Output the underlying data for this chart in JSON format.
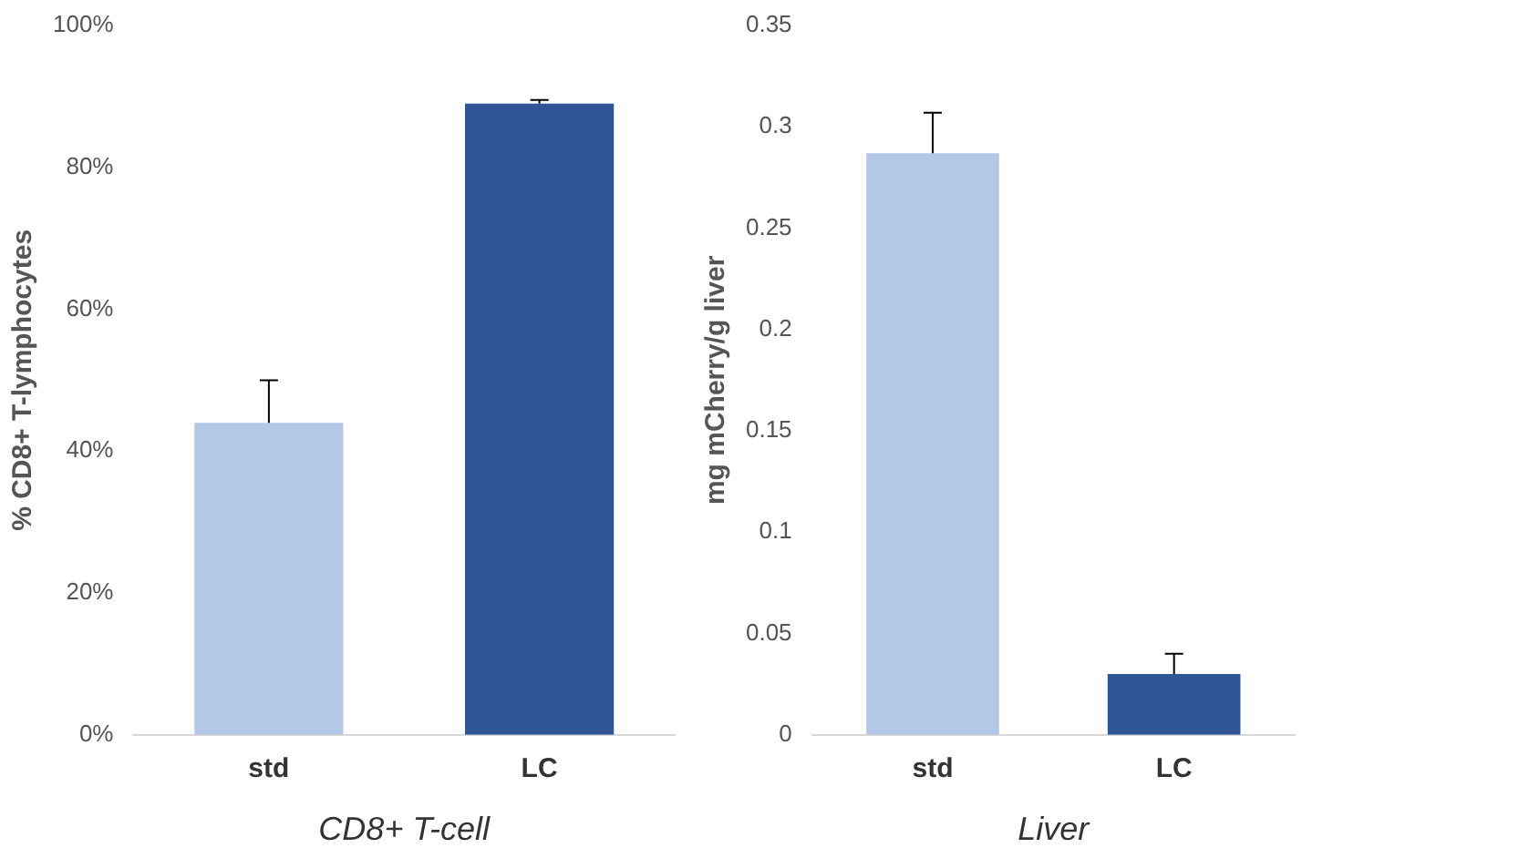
{
  "chart_data": [
    {
      "type": "bar",
      "categories": [
        "std",
        "LC"
      ],
      "values": [
        44,
        89
      ],
      "colors": [
        "#b4c7e7",
        "#2f5597"
      ],
      "errors": [
        [
          44,
          50
        ],
        [
          89,
          89.5
        ]
      ],
      "ylim": [
        0,
        100
      ],
      "yticks": [
        {
          "value": 0,
          "label": "0%"
        },
        {
          "value": 20,
          "label": "20%"
        },
        {
          "value": 40,
          "label": "40%"
        },
        {
          "value": 60,
          "label": "60%"
        },
        {
          "value": 80,
          "label": "80%"
        },
        {
          "value": 100,
          "label": "100%"
        }
      ],
      "ylabel": "% CD8+ T-lymphocytes",
      "xlabel": "CD8+ T-cell",
      "grid": false
    },
    {
      "type": "bar",
      "categories": [
        "std",
        "LC"
      ],
      "values": [
        0.287,
        0.03
      ],
      "colors": [
        "#b4c7e7",
        "#2f5597"
      ],
      "errors": [
        [
          0.287,
          0.307
        ],
        [
          0.03,
          0.04
        ]
      ],
      "ylim": [
        0,
        0.35
      ],
      "yticks": [
        0,
        0.05,
        0.1,
        0.15,
        0.2,
        0.25,
        0.3,
        0.35
      ],
      "ylabel": "mg mCherry/g liver",
      "xlabel": "Liver",
      "grid": false
    }
  ]
}
